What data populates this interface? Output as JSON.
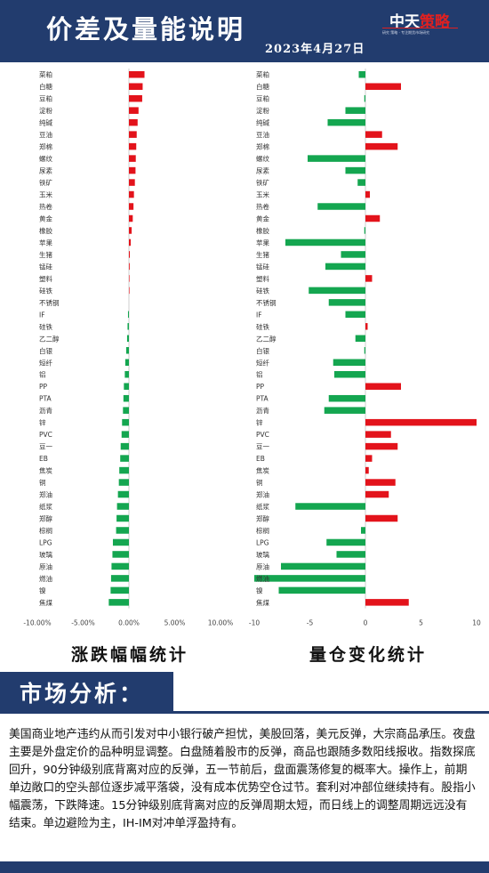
{
  "header": {
    "title": "价差及量能说明",
    "date": "2023年4月27日",
    "logo_main": "中天",
    "logo_accent": "策略",
    "logo_sub": "研究 策略 · 专注期货市场研究"
  },
  "captions": {
    "left": "涨跌幅幅统计",
    "right": "量仓变化统计"
  },
  "section": {
    "title": "市场分析："
  },
  "analysis": "美国商业地产违约从而引发对中小银行破产担忧，美股回落，美元反弹，大宗商品承压。夜盘主要是外盘定价的品种明显调整。白盘随着股市的反弹，商品也跟随多数阳线报收。指数探底回升，90分钟级别底背离对应的反弹，五一节前后，盘面震荡修复的概率大。操作上，前期单边敞口的空头部位逐步减平落袋，没有成本优势空仓过节。套利对冲部位继续持有。股指小幅震荡，下跌降速。15分钟级别底背离对应的反弹周期太短，而日线上的调整周期远远没有结束。单边避险为主，IH-IM对冲单浮盈持有。",
  "chart_data": [
    {
      "type": "bar",
      "orientation": "horizontal",
      "categories": [
        "菜粕",
        "白糖",
        "豆粕",
        "淀粉",
        "纯碱",
        "豆油",
        "郑棉",
        "螺纹",
        "尿素",
        "铁矿",
        "玉米",
        "热卷",
        "黄金",
        "橡胶",
        "苹果",
        "生猪",
        "锰硅",
        "塑料",
        "硅铁",
        "不锈钢",
        "IF",
        "硅铁",
        "乙二醇",
        "白银",
        "短纤",
        "铝",
        "PP",
        "PTA",
        "沥青",
        "锌",
        "PVC",
        "豆一",
        "EB",
        "焦炭",
        "铜",
        "郑油",
        "纸浆",
        "郑醇",
        "棕榈",
        "LPG",
        "玻璃",
        "原油",
        "燃油",
        "镍",
        "焦煤"
      ],
      "values": [
        1.7,
        1.5,
        1.45,
        1.05,
        0.95,
        0.85,
        0.8,
        0.75,
        0.72,
        0.65,
        0.55,
        0.5,
        0.42,
        0.3,
        0.2,
        0.1,
        0.08,
        0.05,
        0.03,
        0.0,
        -0.1,
        -0.15,
        -0.2,
        -0.3,
        -0.4,
        -0.45,
        -0.55,
        -0.6,
        -0.65,
        -0.75,
        -0.8,
        -0.9,
        -0.95,
        -1.05,
        -1.1,
        -1.2,
        -1.3,
        -1.35,
        -1.4,
        -1.75,
        -1.8,
        -1.9,
        -1.95,
        -2.0,
        -2.2
      ],
      "xlim": [
        -10,
        10
      ],
      "xticks": [
        "-10.00%",
        "-5.00%",
        "0.00%",
        "5.00%",
        "10.00%"
      ],
      "colors": {
        "positive": "#e3131b",
        "negative": "#14a650"
      }
    },
    {
      "type": "bar",
      "orientation": "horizontal",
      "categories": [
        "菜粕",
        "白糖",
        "豆粕",
        "淀粉",
        "纯碱",
        "豆油",
        "郑棉",
        "螺纹",
        "尿素",
        "铁矿",
        "玉米",
        "热卷",
        "黄金",
        "橡胶",
        "苹果",
        "生猪",
        "锰硅",
        "塑料",
        "硅铁",
        "不锈钢",
        "IF",
        "硅铁",
        "乙二醇",
        "白银",
        "短纤",
        "铝",
        "PP",
        "PTA",
        "沥青",
        "锌",
        "PVC",
        "豆一",
        "EB",
        "焦炭",
        "铜",
        "郑油",
        "纸浆",
        "郑醇",
        "棕榈",
        "LPG",
        "玻璃",
        "原油",
        "燃油",
        "镍",
        "焦煤"
      ],
      "values": [
        -0.6,
        3.2,
        -0.1,
        -1.8,
        -3.4,
        1.5,
        2.9,
        -5.2,
        -1.8,
        -0.7,
        0.4,
        -4.3,
        1.3,
        -0.1,
        -7.2,
        -2.2,
        -3.6,
        0.6,
        -5.1,
        -3.3,
        -1.8,
        0.2,
        -0.9,
        -0.1,
        -2.9,
        -2.8,
        3.2,
        -3.3,
        -3.7,
        10.0,
        2.3,
        2.9,
        0.6,
        0.3,
        2.7,
        2.1,
        -6.3,
        2.9,
        -0.4,
        -3.5,
        -2.6,
        -7.6,
        -10.0,
        -7.8,
        3.9
      ],
      "xlim": [
        -10,
        10
      ],
      "xticks": [
        "-10",
        "-5",
        "0",
        "5",
        "10"
      ],
      "colors": {
        "positive": "#e3131b",
        "negative": "#14a650"
      }
    }
  ]
}
